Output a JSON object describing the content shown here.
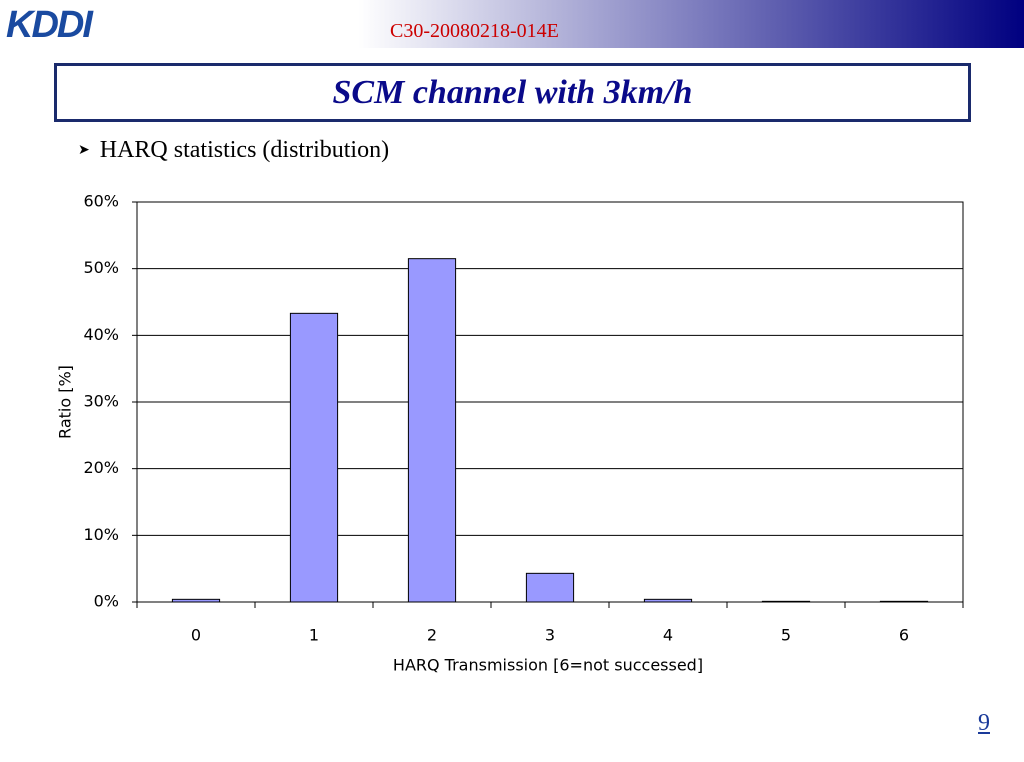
{
  "header": {
    "logo": "KDDI",
    "doc_id": "C30-20080218-014E"
  },
  "title": "SCM channel with 3km/h",
  "bullet": "HARQ statistics (distribution)",
  "page_number": "9",
  "chart_data": {
    "type": "bar",
    "categories": [
      "0",
      "1",
      "2",
      "3",
      "4",
      "5",
      "6"
    ],
    "values": [
      0.4,
      43.3,
      51.5,
      4.3,
      0.4,
      0.1,
      0.1
    ],
    "color": "#9999ff",
    "ylim": [
      0,
      60
    ],
    "yticks": [
      {
        "value": 0,
        "label": "0%"
      },
      {
        "value": 10,
        "label": "10%"
      },
      {
        "value": 20,
        "label": "20%"
      },
      {
        "value": 30,
        "label": "30%"
      },
      {
        "value": 40,
        "label": "40%"
      },
      {
        "value": 50,
        "label": "50%"
      },
      {
        "value": 60,
        "label": "60%"
      }
    ],
    "grid": true,
    "xlabel": "HARQ Transmission [6=not successed]",
    "ylabel": "Ratio [%]"
  }
}
